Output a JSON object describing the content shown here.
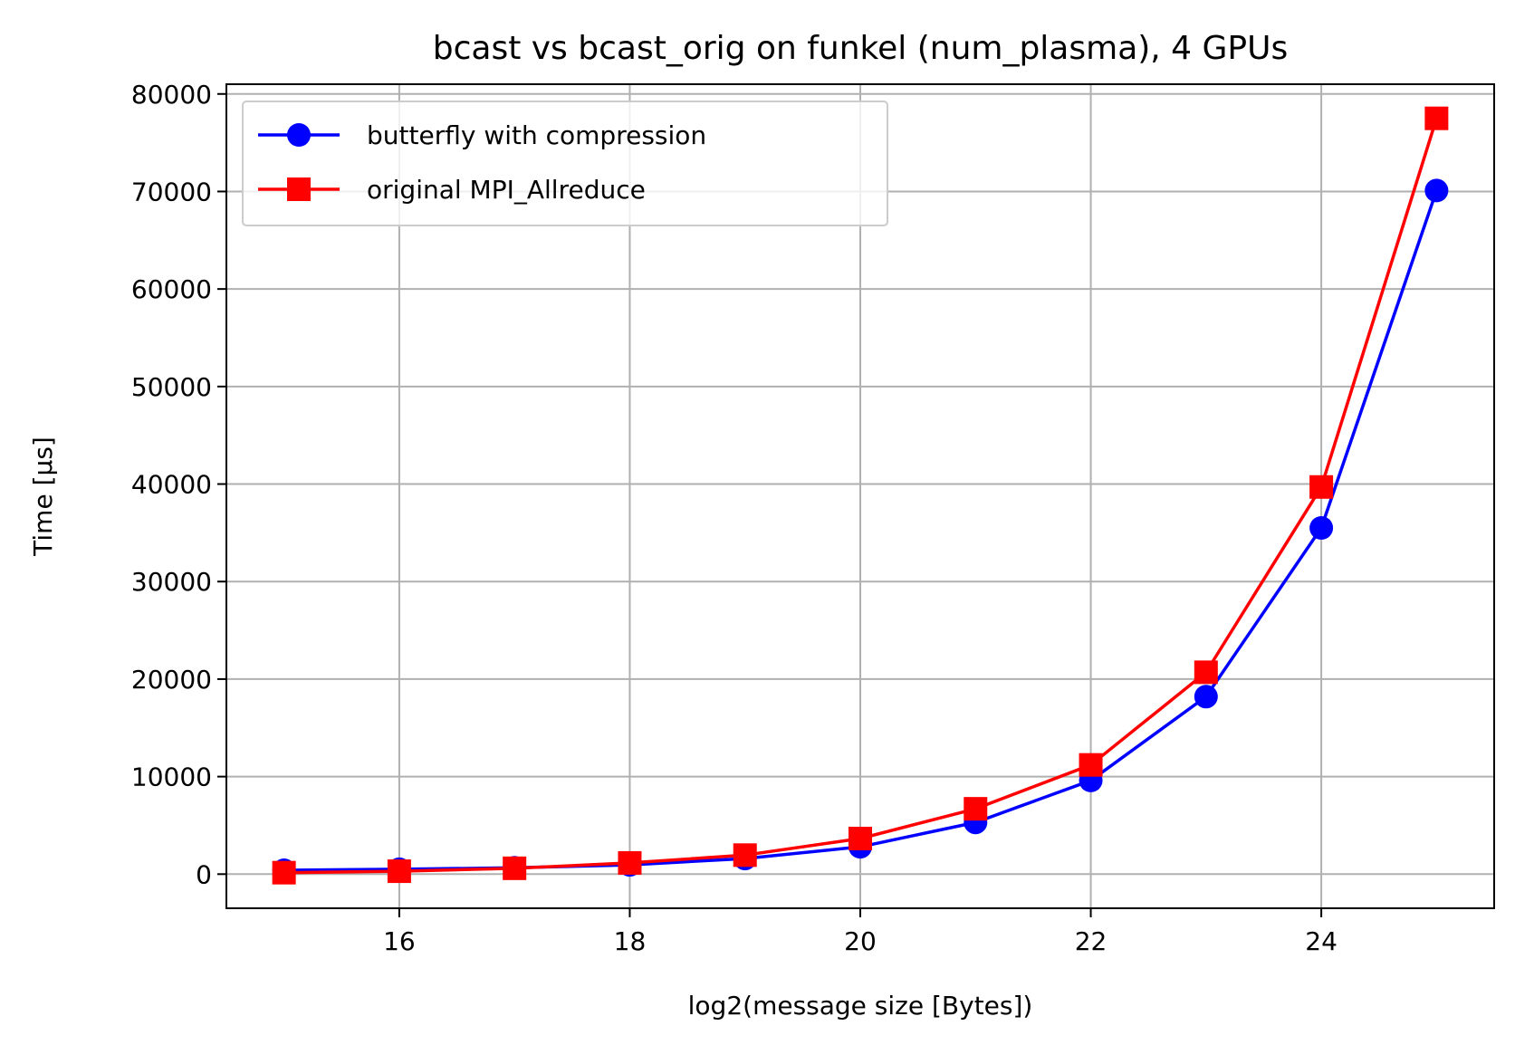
{
  "chart_data": {
    "type": "line",
    "title": "bcast vs bcast_orig on funkel (num_plasma), 4 GPUs",
    "xlabel": "log2(message size [Bytes])",
    "ylabel": "Time [µs]",
    "xlim": [
      14.5,
      25.5
    ],
    "ylim": [
      -3500,
      81000
    ],
    "xticks": [
      16,
      18,
      20,
      22,
      24
    ],
    "yticks": [
      0,
      10000,
      20000,
      30000,
      40000,
      50000,
      60000,
      70000,
      80000
    ],
    "grid": true,
    "legend_position": "top-left",
    "x": [
      15,
      16,
      17,
      18,
      19,
      20,
      21,
      22,
      23,
      24,
      25
    ],
    "series": [
      {
        "name": "butterfly with compression",
        "color": "#0000ff",
        "marker": "circle",
        "values": [
          400,
          500,
          650,
          950,
          1600,
          2800,
          5300,
          9600,
          18200,
          35500,
          70100
        ]
      },
      {
        "name": "original MPI_Allreduce",
        "color": "#ff0000",
        "marker": "square",
        "values": [
          150,
          300,
          600,
          1150,
          1950,
          3650,
          6700,
          11200,
          20700,
          39700,
          77500
        ]
      }
    ]
  }
}
